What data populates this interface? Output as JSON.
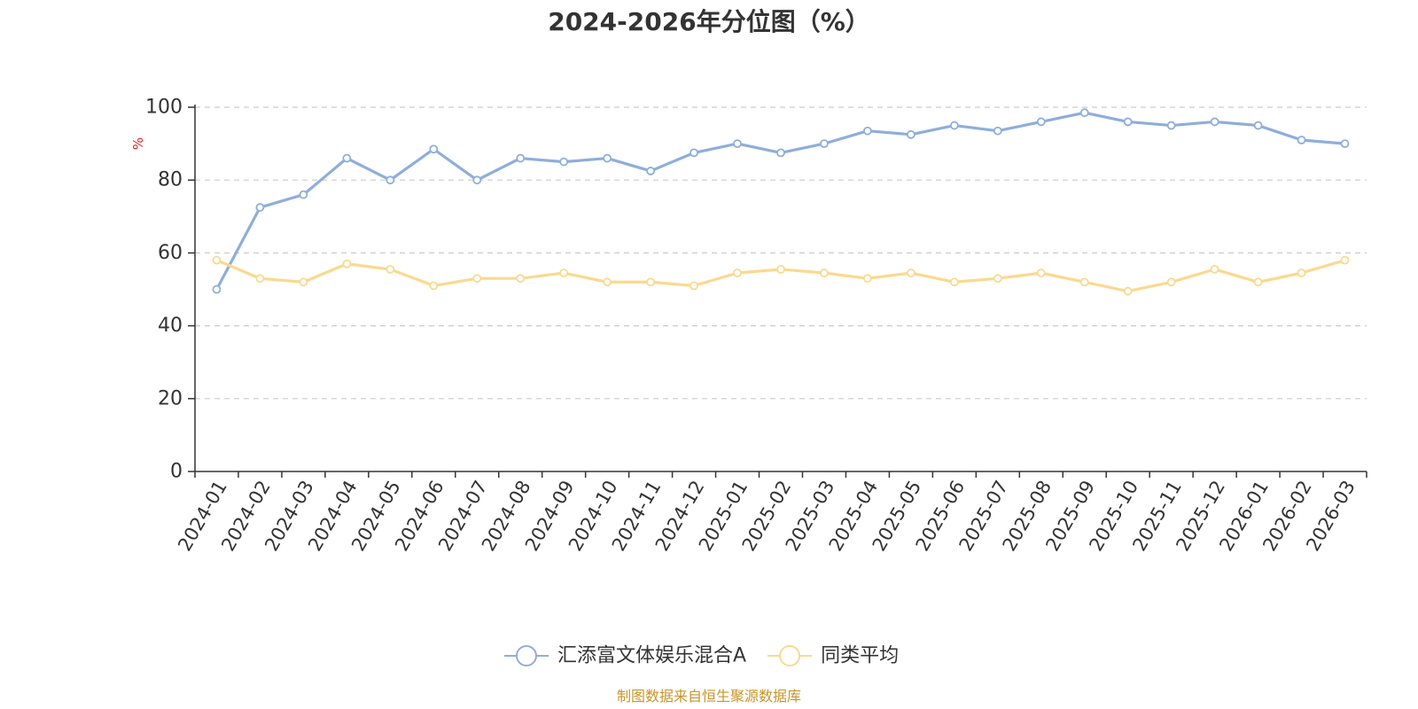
{
  "chart_data": {
    "type": "line",
    "title": "2024-2026年分位图（%）",
    "ylabel": "%",
    "xlabel": "",
    "ylim": [
      0,
      100
    ],
    "yticks": [
      0,
      20,
      40,
      60,
      80,
      100
    ],
    "grid": true,
    "legend_position": "bottom",
    "categories": [
      "2024-01",
      "2024-02",
      "2024-03",
      "2024-04",
      "2024-05",
      "2024-06",
      "2024-07",
      "2024-08",
      "2024-09",
      "2024-10",
      "2024-11",
      "2024-12",
      "2025-01",
      "2025-02",
      "2025-03",
      "2025-04",
      "2025-05",
      "2025-06",
      "2025-07",
      "2025-08",
      "2025-09",
      "2025-10",
      "2025-11",
      "2025-12",
      "2026-01",
      "2026-02",
      "2026-03"
    ],
    "series": [
      {
        "name": "汇添富文体娱乐混合A",
        "color": "#8eaedb",
        "values": [
          50,
          72.5,
          76,
          86,
          80,
          88.5,
          80,
          86,
          85,
          86,
          82.5,
          87.5,
          90,
          87.5,
          90,
          93.5,
          92.5,
          95,
          93.5,
          96,
          98.5,
          96,
          95,
          96,
          95,
          91,
          90
        ]
      },
      {
        "name": "同类平均",
        "color": "#fad98f",
        "values": [
          58,
          53,
          52,
          57,
          55.5,
          51,
          53,
          53,
          54.5,
          52,
          52,
          51,
          54.5,
          55.5,
          54.5,
          53,
          54.5,
          52,
          53,
          54.5,
          52,
          49.5,
          52,
          55.5,
          52,
          54.5,
          58
        ]
      }
    ]
  },
  "footer": {
    "source_text": "制图数据来自恒生聚源数据库",
    "source_color": "#c8952a"
  },
  "colors": {
    "axis": "#333333",
    "grid": "#cccccc",
    "unit_label": "#e02020"
  }
}
